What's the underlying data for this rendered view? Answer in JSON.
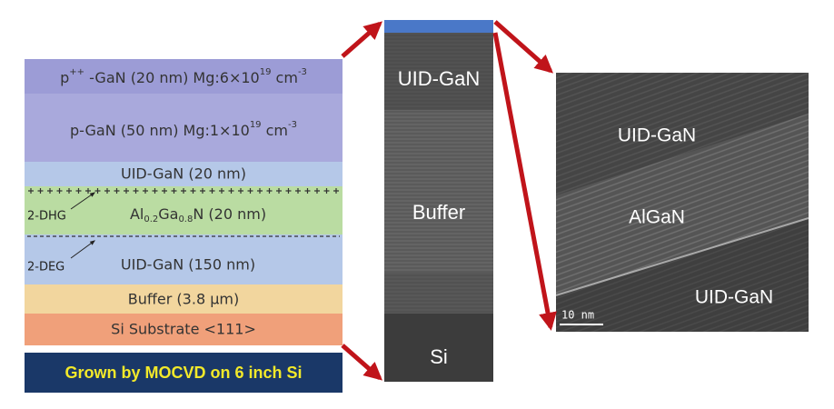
{
  "left_stack": {
    "layers": [
      {
        "text": [
          "p",
          "++",
          " -GaN (20 nm) Mg:6×10",
          "19",
          " cm",
          "-3"
        ]
      },
      {
        "text": [
          "p-GaN (50 nm) Mg:1×10",
          "19",
          " cm",
          "-3"
        ]
      },
      {
        "text": [
          "UID-GaN (20 nm)"
        ]
      },
      {
        "text": [
          "Al",
          "0.2",
          "Ga",
          "0.8",
          "N (20 nm)"
        ]
      },
      {
        "text": [
          "UID-GaN (150 nm)"
        ]
      },
      {
        "text": [
          "Buffer (3.8 µm)"
        ]
      },
      {
        "text": [
          "Si Substrate <111>"
        ]
      }
    ],
    "markers": {
      "dhg": "2-DHG",
      "deg": "2-DEG"
    },
    "note": "Grown by MOCVD on 6 inch Si"
  },
  "tem": {
    "labels": [
      "UID-GaN",
      "Buffer",
      "Si"
    ]
  },
  "hrtem": {
    "labels": [
      "UID-GaN",
      "AlGaN",
      "UID-GaN"
    ],
    "scale_bar": "10 nm"
  }
}
